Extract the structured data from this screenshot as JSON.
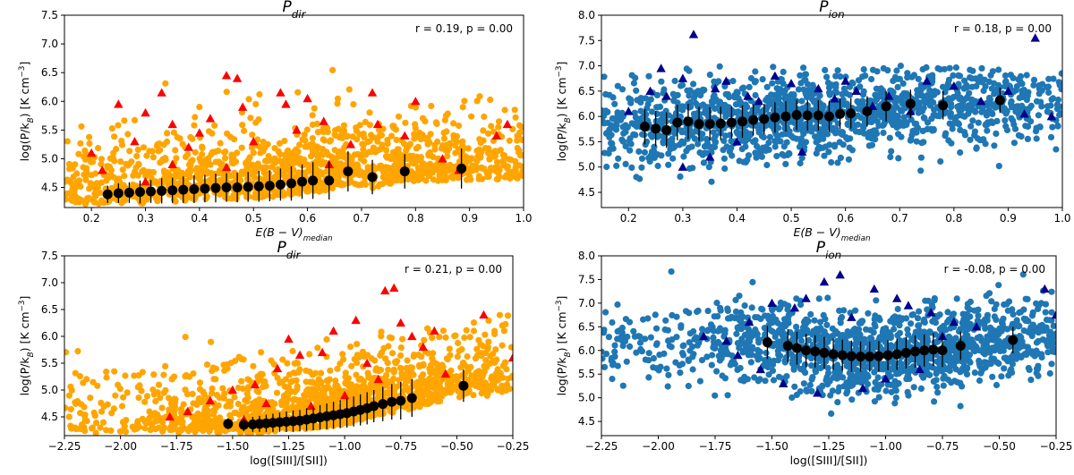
{
  "figure": {
    "panels": [
      {
        "title": "P_dir",
        "annotation": "r = 0.19, p = 0.00",
        "xlabel": "E(B − V)_median",
        "ylabel": "log(P/k_B) [K cm^-3]",
        "xlim": [
          0.15,
          1.0
        ],
        "ylim": [
          4.15,
          7.5
        ],
        "xticks": [
          0.2,
          0.3,
          0.4,
          0.5,
          0.6,
          0.7,
          0.8,
          0.9,
          1.0
        ],
        "xtick_labels": [
          "0.2",
          "0.3",
          "0.4",
          "0.5",
          "0.6",
          "0.7",
          "0.8",
          "0.9",
          "1.0"
        ],
        "yticks": [
          4.5,
          5.0,
          5.5,
          6.0,
          6.5,
          7.0,
          7.5
        ],
        "ytick_labels": [
          "4.5",
          "5.0",
          "5.5",
          "6.0",
          "6.5",
          "7.0",
          "7.5"
        ],
        "point_color": "#ffa500",
        "marker_color": "#ff0000"
      },
      {
        "title": "P_ion",
        "annotation": "r = 0.18, p = 0.00",
        "xlabel": "E(B − V)_median",
        "ylabel": "log(P/k_B) [K cm^-3]",
        "xlim": [
          0.15,
          1.0
        ],
        "ylim": [
          4.2,
          8.0
        ],
        "xticks": [
          0.2,
          0.3,
          0.4,
          0.5,
          0.6,
          0.7,
          0.8,
          0.9,
          1.0
        ],
        "xtick_labels": [
          "0.2",
          "0.3",
          "0.4",
          "0.5",
          "0.6",
          "0.7",
          "0.8",
          "0.9",
          "1.0"
        ],
        "yticks": [
          4.5,
          5.0,
          5.5,
          6.0,
          6.5,
          7.0,
          7.5,
          8.0
        ],
        "ytick_labels": [
          "4.5",
          "5.0",
          "5.5",
          "6.0",
          "6.5",
          "7.0",
          "7.5",
          "8.0"
        ],
        "point_color": "#1f77b4",
        "marker_color": "#00008b"
      },
      {
        "title": "P_dir",
        "annotation": "r = 0.21, p = 0.00",
        "xlabel": "log([SIII]/[SII])",
        "ylabel": "log(P/k_B) [K cm^-3]",
        "xlim": [
          -2.25,
          -0.25
        ],
        "ylim": [
          4.15,
          7.5
        ],
        "xticks": [
          -2.25,
          -2.0,
          -1.75,
          -1.5,
          -1.25,
          -1.0,
          -0.75,
          -0.5,
          -0.25
        ],
        "xtick_labels": [
          "−2.25",
          "−2.00",
          "−1.75",
          "−1.50",
          "−1.25",
          "−1.00",
          "−0.75",
          "−0.50",
          "−0.25"
        ],
        "yticks": [
          4.5,
          5.0,
          5.5,
          6.0,
          6.5,
          7.0,
          7.5
        ],
        "ytick_labels": [
          "4.5",
          "5.0",
          "5.5",
          "6.0",
          "6.5",
          "7.0",
          "7.5"
        ],
        "point_color": "#ffa500",
        "marker_color": "#ff0000"
      },
      {
        "title": "P_ion",
        "annotation": "r = -0.08, p = 0.00",
        "xlabel": "log([SIII]/[SII])",
        "ylabel": "log(P/k_B) [K cm^-3]",
        "xlim": [
          -2.25,
          -0.25
        ],
        "ylim": [
          4.2,
          8.0
        ],
        "xticks": [
          -2.25,
          -2.0,
          -1.75,
          -1.5,
          -1.25,
          -1.0,
          -0.75,
          -0.5,
          -0.25
        ],
        "xtick_labels": [
          "−2.25",
          "−2.00",
          "−1.75",
          "−1.50",
          "−1.25",
          "−1.00",
          "−0.75",
          "−0.50",
          "−0.25"
        ],
        "yticks": [
          4.5,
          5.0,
          5.5,
          6.0,
          6.5,
          7.0,
          7.5,
          8.0
        ],
        "ytick_labels": [
          "4.5",
          "5.0",
          "5.5",
          "6.0",
          "6.5",
          "7.0",
          "7.5",
          "8.0"
        ],
        "point_color": "#1f77b4",
        "marker_color": "#00008b"
      }
    ]
  },
  "chart_data": [
    {
      "type": "scatter",
      "title": "P_dir",
      "xlabel": "E(B − V)_median",
      "ylabel": "log(P/k_B) [K cm^-3]",
      "xlim": [
        0.15,
        1.0
      ],
      "ylim": [
        4.15,
        7.5
      ],
      "annotation": "r = 0.19, p = 0.00",
      "scatter_cloud": {
        "x_range": [
          0.15,
          1.0
        ],
        "y_range": [
          4.2,
          6.6
        ],
        "color": "#ffa500"
      },
      "triangles": {
        "color": "#ff0000",
        "points": [
          [
            0.25,
            5.95
          ],
          [
            0.3,
            5.8
          ],
          [
            0.33,
            6.15
          ],
          [
            0.35,
            5.6
          ],
          [
            0.4,
            5.45
          ],
          [
            0.38,
            5.2
          ],
          [
            0.45,
            6.45
          ],
          [
            0.47,
            6.4
          ],
          [
            0.55,
            6.15
          ],
          [
            0.56,
            5.95
          ],
          [
            0.6,
            6.05
          ],
          [
            0.63,
            5.65
          ],
          [
            0.45,
            4.85
          ],
          [
            0.5,
            5.3
          ],
          [
            0.2,
            5.1
          ],
          [
            0.22,
            4.8
          ],
          [
            0.3,
            4.6
          ],
          [
            0.42,
            5.7
          ],
          [
            0.58,
            5.5
          ],
          [
            0.68,
            5.25
          ],
          [
            0.73,
            5.6
          ],
          [
            0.72,
            6.15
          ],
          [
            0.8,
            6.0
          ],
          [
            0.78,
            5.4
          ],
          [
            0.95,
            5.4
          ],
          [
            0.97,
            5.6
          ],
          [
            0.88,
            4.8
          ],
          [
            0.35,
            4.9
          ],
          [
            0.28,
            5.3
          ],
          [
            0.48,
            5.9
          ],
          [
            0.64,
            4.9
          ],
          [
            0.85,
            5.0
          ]
        ]
      },
      "binned": {
        "color": "#000000",
        "x": [
          0.23,
          0.25,
          0.27,
          0.29,
          0.31,
          0.33,
          0.35,
          0.37,
          0.39,
          0.41,
          0.43,
          0.45,
          0.47,
          0.49,
          0.51,
          0.53,
          0.55,
          0.57,
          0.59,
          0.61,
          0.64,
          0.675,
          0.72,
          0.78,
          0.885
        ],
        "y": [
          4.38,
          4.4,
          4.41,
          4.42,
          4.43,
          4.44,
          4.45,
          4.46,
          4.47,
          4.48,
          4.49,
          4.5,
          4.5,
          4.51,
          4.52,
          4.53,
          4.55,
          4.57,
          4.6,
          4.62,
          4.62,
          4.78,
          4.68,
          4.78,
          4.83
        ],
        "err": [
          0.15,
          0.17,
          0.18,
          0.2,
          0.2,
          0.22,
          0.22,
          0.23,
          0.24,
          0.24,
          0.25,
          0.25,
          0.26,
          0.26,
          0.27,
          0.27,
          0.28,
          0.3,
          0.3,
          0.32,
          0.33,
          0.35,
          0.3,
          0.3,
          0.35
        ]
      }
    },
    {
      "type": "scatter",
      "title": "P_ion",
      "xlabel": "E(B − V)_median",
      "ylabel": "log(P/k_B) [K cm^-3]",
      "xlim": [
        0.15,
        1.0
      ],
      "ylim": [
        4.2,
        8.0
      ],
      "annotation": "r = 0.18, p = 0.00",
      "scatter_cloud": {
        "x_range": [
          0.15,
          1.0
        ],
        "y_range": [
          4.3,
          7.0
        ],
        "color": "#1f77b4"
      },
      "triangles": {
        "color": "#00008b",
        "points": [
          [
            0.32,
            7.62
          ],
          [
            0.3,
            6.75
          ],
          [
            0.36,
            6.55
          ],
          [
            0.42,
            6.4
          ],
          [
            0.38,
            6.7
          ],
          [
            0.47,
            6.8
          ],
          [
            0.5,
            6.65
          ],
          [
            0.55,
            6.55
          ],
          [
            0.6,
            6.7
          ],
          [
            0.68,
            6.4
          ],
          [
            0.75,
            6.7
          ],
          [
            0.8,
            6.6
          ],
          [
            0.95,
            7.55
          ],
          [
            0.9,
            6.5
          ],
          [
            0.93,
            6.05
          ],
          [
            0.2,
            6.1
          ],
          [
            0.24,
            6.5
          ],
          [
            0.27,
            6.4
          ],
          [
            0.35,
            5.2
          ],
          [
            0.3,
            5.0
          ],
          [
            0.44,
            6.3
          ],
          [
            0.58,
            6.35
          ],
          [
            0.65,
            6.2
          ],
          [
            0.72,
            6.1
          ],
          [
            0.85,
            6.3
          ],
          [
            0.98,
            6.0
          ],
          [
            0.4,
            5.5
          ],
          [
            0.52,
            5.3
          ],
          [
            0.62,
            6.5
          ],
          [
            0.26,
            6.95
          ]
        ]
      },
      "binned": {
        "color": "#000000",
        "x": [
          0.23,
          0.25,
          0.27,
          0.29,
          0.31,
          0.33,
          0.35,
          0.37,
          0.39,
          0.41,
          0.43,
          0.45,
          0.47,
          0.49,
          0.51,
          0.53,
          0.55,
          0.57,
          0.59,
          0.61,
          0.64,
          0.675,
          0.72,
          0.78,
          0.885
        ],
        "y": [
          5.8,
          5.76,
          5.73,
          5.88,
          5.9,
          5.85,
          5.85,
          5.86,
          5.88,
          5.9,
          5.93,
          5.95,
          5.98,
          6.0,
          6.03,
          6.02,
          6.02,
          6.0,
          6.05,
          6.06,
          6.1,
          6.2,
          6.25,
          6.22,
          6.32
        ],
        "err": [
          0.35,
          0.35,
          0.35,
          0.35,
          0.35,
          0.34,
          0.33,
          0.33,
          0.32,
          0.32,
          0.31,
          0.3,
          0.3,
          0.3,
          0.3,
          0.3,
          0.3,
          0.3,
          0.3,
          0.3,
          0.3,
          0.3,
          0.28,
          0.28,
          0.25
        ]
      }
    },
    {
      "type": "scatter",
      "title": "P_dir",
      "xlabel": "log([SIII]/[SII])",
      "ylabel": "log(P/k_B) [K cm^-3]",
      "xlim": [
        -2.25,
        -0.25
      ],
      "ylim": [
        4.15,
        7.5
      ],
      "annotation": "r = 0.21, p = 0.00",
      "scatter_cloud": {
        "x_range": [
          -2.25,
          -0.25
        ],
        "y_range": [
          4.2,
          6.9
        ],
        "color": "#ffa500"
      },
      "triangles": {
        "color": "#ff0000",
        "points": [
          [
            -0.82,
            6.85
          ],
          [
            -0.78,
            6.9
          ],
          [
            -0.95,
            6.3
          ],
          [
            -1.05,
            6.1
          ],
          [
            -0.7,
            6.0
          ],
          [
            -0.65,
            5.8
          ],
          [
            -0.6,
            6.1
          ],
          [
            -0.38,
            6.4
          ],
          [
            -0.25,
            5.6
          ],
          [
            -1.2,
            5.65
          ],
          [
            -1.3,
            5.4
          ],
          [
            -1.4,
            5.1
          ],
          [
            -1.5,
            5.0
          ],
          [
            -1.6,
            4.8
          ],
          [
            -1.7,
            4.6
          ],
          [
            -1.78,
            4.5
          ],
          [
            -1.25,
            5.95
          ],
          [
            -1.1,
            5.7
          ],
          [
            -0.9,
            5.5
          ],
          [
            -1.0,
            4.9
          ],
          [
            -1.15,
            4.7
          ],
          [
            -0.55,
            5.3
          ],
          [
            -0.85,
            5.2
          ],
          [
            -1.35,
            4.75
          ],
          [
            -1.45,
            4.45
          ],
          [
            -0.75,
            6.25
          ]
        ]
      },
      "binned": {
        "color": "#000000",
        "x": [
          -1.52,
          -1.45,
          -1.41,
          -1.38,
          -1.35,
          -1.32,
          -1.29,
          -1.26,
          -1.23,
          -1.2,
          -1.17,
          -1.14,
          -1.11,
          -1.08,
          -1.05,
          -1.02,
          -0.99,
          -0.96,
          -0.93,
          -0.9,
          -0.87,
          -0.83,
          -0.79,
          -0.75,
          -0.7,
          -0.47
        ],
        "y": [
          4.37,
          4.35,
          4.36,
          4.37,
          4.38,
          4.39,
          4.4,
          4.41,
          4.42,
          4.43,
          4.45,
          4.47,
          4.49,
          4.51,
          4.53,
          4.55,
          4.57,
          4.6,
          4.63,
          4.66,
          4.7,
          4.74,
          4.78,
          4.8,
          4.85,
          5.08
        ],
        "err": [
          0.1,
          0.12,
          0.14,
          0.15,
          0.16,
          0.17,
          0.18,
          0.19,
          0.2,
          0.2,
          0.21,
          0.22,
          0.23,
          0.24,
          0.25,
          0.26,
          0.27,
          0.28,
          0.29,
          0.3,
          0.3,
          0.32,
          0.33,
          0.35,
          0.35,
          0.3
        ]
      }
    },
    {
      "type": "scatter",
      "title": "P_ion",
      "xlabel": "log([SIII]/[SII])",
      "ylabel": "log(P/k_B) [K cm^-3]",
      "xlim": [
        -2.25,
        -0.25
      ],
      "ylim": [
        4.2,
        8.0
      ],
      "annotation": "r = -0.08, p = 0.00",
      "scatter_cloud": {
        "x_range": [
          -2.25,
          -0.25
        ],
        "y_range": [
          4.3,
          7.7
        ],
        "color": "#1f77b4"
      },
      "triangles": {
        "color": "#00008b",
        "points": [
          [
            -1.2,
            7.6
          ],
          [
            -1.27,
            7.45
          ],
          [
            -1.05,
            7.3
          ],
          [
            -0.3,
            7.3
          ],
          [
            -0.25,
            6.75
          ],
          [
            -1.8,
            6.3
          ],
          [
            -1.6,
            6.6
          ],
          [
            -1.5,
            7.0
          ],
          [
            -1.4,
            6.9
          ],
          [
            -0.9,
            6.95
          ],
          [
            -0.8,
            6.8
          ],
          [
            -0.7,
            6.6
          ],
          [
            -0.6,
            6.5
          ],
          [
            -1.7,
            6.2
          ],
          [
            -1.55,
            5.6
          ],
          [
            -1.45,
            5.3
          ],
          [
            -1.3,
            5.1
          ],
          [
            -1.0,
            5.4
          ],
          [
            -0.85,
            5.6
          ],
          [
            -1.15,
            6.7
          ],
          [
            -1.35,
            7.1
          ],
          [
            -0.95,
            7.1
          ],
          [
            -1.1,
            5.2
          ],
          [
            -0.75,
            6.3
          ],
          [
            -1.65,
            5.9
          ]
        ]
      },
      "binned": {
        "color": "#000000",
        "x": [
          -1.52,
          -1.43,
          -1.39,
          -1.35,
          -1.31,
          -1.27,
          -1.23,
          -1.19,
          -1.15,
          -1.11,
          -1.07,
          -1.03,
          -0.99,
          -0.95,
          -0.91,
          -0.87,
          -0.83,
          -0.79,
          -0.75,
          -0.67,
          -0.44
        ],
        "y": [
          6.17,
          6.1,
          6.05,
          6.0,
          5.98,
          5.95,
          5.92,
          5.9,
          5.88,
          5.87,
          5.87,
          5.88,
          5.9,
          5.92,
          5.95,
          5.98,
          6.0,
          6.02,
          6.0,
          6.1,
          6.22
        ],
        "err": [
          0.35,
          0.35,
          0.35,
          0.35,
          0.34,
          0.34,
          0.33,
          0.33,
          0.33,
          0.32,
          0.32,
          0.32,
          0.32,
          0.33,
          0.33,
          0.34,
          0.34,
          0.35,
          0.35,
          0.3,
          0.28
        ]
      }
    }
  ]
}
